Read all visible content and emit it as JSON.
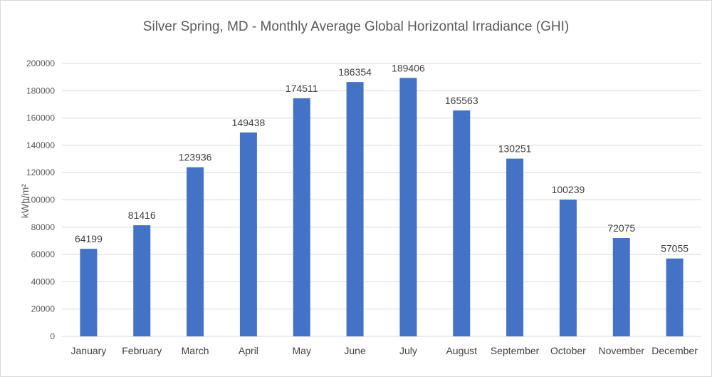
{
  "chart_data": {
    "type": "bar",
    "title": "Silver Spring, MD - Monthly Average Global Horizontal Irradiance (GHI)",
    "ylabel": "kWh/m²",
    "xlabel": "",
    "categories": [
      "January",
      "February",
      "March",
      "April",
      "May",
      "June",
      "July",
      "August",
      "September",
      "October",
      "November",
      "December"
    ],
    "values": [
      64199,
      81416,
      123936,
      149438,
      174511,
      186354,
      189406,
      165563,
      130251,
      100239,
      72075,
      57055
    ],
    "data_labels": [
      "64199",
      "81416",
      "123936",
      "149438",
      "174511",
      "186354",
      "189406",
      "165563",
      "130251",
      "100239",
      "72075",
      "57055"
    ],
    "ylim": [
      0,
      200000
    ],
    "yticks": [
      "0",
      "20000",
      "40000",
      "60000",
      "80000",
      "100000",
      "120000",
      "140000",
      "160000",
      "180000",
      "200000"
    ],
    "grid": true,
    "legend": "none",
    "bar_color": "#4472c4",
    "grid_color": "#d9d9d9"
  }
}
